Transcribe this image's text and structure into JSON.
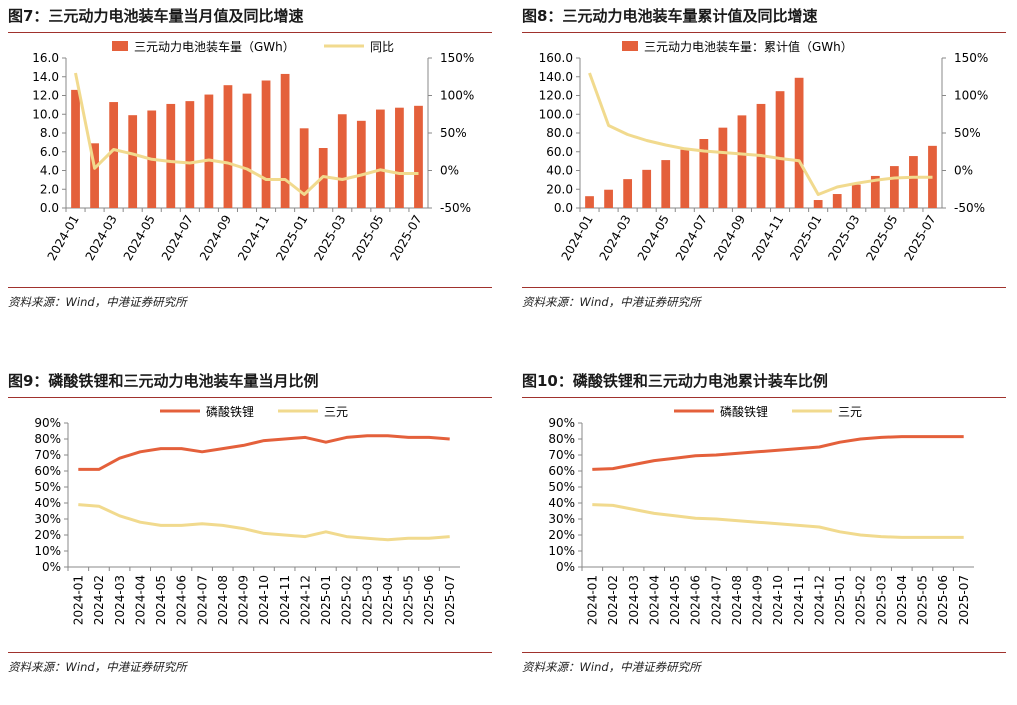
{
  "source_label": "资料来源：Wind，中港证券研究所",
  "colors": {
    "bar": "#e4603b",
    "line_yoy": "#f1da8e",
    "lfp": "#e4603b",
    "ternary": "#f1da8e",
    "rule": "#a0322d"
  },
  "chart_data": [
    {
      "id": "fig7",
      "type": "bar+line",
      "title": "图7：三元动力电池装车量当月值及同比增速",
      "categories": [
        "2024-01",
        "2024-02",
        "2024-03",
        "2024-04",
        "2024-05",
        "2024-06",
        "2024-07",
        "2024-08",
        "2024-09",
        "2024-10",
        "2024-11",
        "2024-12",
        "2025-01",
        "2025-02",
        "2025-03",
        "2025-04",
        "2025-05",
        "2025-06",
        "2025-07"
      ],
      "xtick_labels": [
        "2024-01",
        "2024-03",
        "2024-05",
        "2024-07",
        "2024-09",
        "2024-11",
        "2025-01",
        "2025-03",
        "2025-05",
        "2025-07"
      ],
      "series": [
        {
          "name": "三元动力电池装车量（GWh）",
          "type": "bar",
          "axis": "left",
          "values": [
            12.6,
            6.9,
            11.3,
            9.9,
            10.4,
            11.1,
            11.4,
            12.1,
            13.1,
            12.2,
            13.6,
            14.3,
            8.5,
            6.4,
            10.0,
            9.3,
            10.5,
            10.7,
            10.9
          ]
        },
        {
          "name": "同比",
          "type": "line",
          "axis": "right",
          "values": [
            130,
            3,
            28,
            22,
            15,
            12,
            10,
            14,
            10,
            2,
            -12,
            -12,
            -32,
            -8,
            -12,
            -6,
            1,
            -4,
            -4
          ]
        }
      ],
      "left_axis": {
        "min": 0,
        "max": 16,
        "ticks": [
          "0.0",
          "2.0",
          "4.0",
          "6.0",
          "8.0",
          "10.0",
          "12.0",
          "14.0",
          "16.0"
        ]
      },
      "right_axis": {
        "min": -50,
        "max": 150,
        "ticks": [
          "-50%",
          "0%",
          "50%",
          "100%",
          "150%"
        ]
      }
    },
    {
      "id": "fig8",
      "type": "bar+line",
      "title": "图8：三元动力电池装车量累计值及同比增速",
      "categories": [
        "2024-01",
        "2024-02",
        "2024-03",
        "2024-04",
        "2024-05",
        "2024-06",
        "2024-07",
        "2024-08",
        "2024-09",
        "2024-10",
        "2024-11",
        "2024-12",
        "2025-01",
        "2025-02",
        "2025-03",
        "2025-04",
        "2025-05",
        "2025-06",
        "2025-07"
      ],
      "xtick_labels": [
        "2024-01",
        "2024-03",
        "2024-05",
        "2024-07",
        "2024-09",
        "2024-11",
        "2025-01",
        "2025-03",
        "2025-05",
        "2025-07"
      ],
      "series": [
        {
          "name": "三元动力电池装车量：累计值（GWh）",
          "type": "bar",
          "axis": "left",
          "values": [
            12.6,
            19.5,
            30.8,
            40.7,
            51.1,
            62.2,
            73.6,
            85.7,
            98.8,
            111.0,
            124.6,
            138.9,
            8.5,
            14.9,
            24.9,
            34.2,
            44.7,
            55.4,
            66.3
          ]
        },
        {
          "name": "同比",
          "type": "line",
          "axis": "right",
          "values": [
            130,
            60,
            48,
            40,
            34,
            29,
            26,
            24,
            22,
            20,
            16,
            13,
            -32,
            -22,
            -17,
            -13,
            -10,
            -9,
            -9
          ]
        }
      ],
      "left_axis": {
        "min": 0,
        "max": 160,
        "ticks": [
          "0.0",
          "20.0",
          "40.0",
          "60.0",
          "80.0",
          "100.0",
          "120.0",
          "140.0",
          "160.0"
        ]
      },
      "right_axis": {
        "min": -50,
        "max": 150,
        "ticks": [
          "-50%",
          "0%",
          "50%",
          "100%",
          "150%"
        ]
      }
    },
    {
      "id": "fig9",
      "type": "line",
      "title": "图9：磷酸铁锂和三元动力电池装车量当月比例",
      "categories": [
        "2024-01",
        "2024-02",
        "2024-03",
        "2024-04",
        "2024-05",
        "2024-06",
        "2024-07",
        "2024-08",
        "2024-09",
        "2024-10",
        "2024-11",
        "2024-12",
        "2025-01",
        "2025-02",
        "2025-03",
        "2025-04",
        "2025-05",
        "2025-06",
        "2025-07"
      ],
      "series": [
        {
          "name": "磷酸铁锂",
          "values": [
            61,
            61,
            68,
            72,
            74,
            74,
            72,
            74,
            76,
            79,
            80,
            81,
            78,
            81,
            82,
            82,
            81,
            81,
            80
          ]
        },
        {
          "name": "三元",
          "values": [
            39,
            38,
            32,
            28,
            26,
            26,
            27,
            26,
            24,
            21,
            20,
            19,
            22,
            19,
            18,
            17,
            18,
            18,
            19
          ]
        }
      ],
      "y_axis": {
        "min": 0,
        "max": 90,
        "ticks": [
          "0%",
          "10%",
          "20%",
          "30%",
          "40%",
          "50%",
          "60%",
          "70%",
          "80%",
          "90%"
        ]
      }
    },
    {
      "id": "fig10",
      "type": "line",
      "title": "图10：磷酸铁锂和三元动力电池累计装车比例",
      "categories": [
        "2024-01",
        "2024-02",
        "2024-03",
        "2024-04",
        "2024-05",
        "2024-06",
        "2024-07",
        "2024-08",
        "2024-09",
        "2024-10",
        "2024-11",
        "2024-12",
        "2025-01",
        "2025-02",
        "2025-03",
        "2025-04",
        "2025-05",
        "2025-06",
        "2025-07"
      ],
      "series": [
        {
          "name": "磷酸铁锂",
          "values": [
            61,
            61.5,
            64,
            66.5,
            68,
            69.5,
            70,
            71,
            72,
            73,
            74,
            75,
            78,
            80,
            81,
            81.5,
            81.5,
            81.5,
            81.5
          ]
        },
        {
          "name": "三元",
          "values": [
            39,
            38.5,
            36,
            33.5,
            32,
            30.5,
            30,
            29,
            28,
            27,
            26,
            25,
            22,
            20,
            19,
            18.5,
            18.5,
            18.5,
            18.5
          ]
        }
      ],
      "y_axis": {
        "min": 0,
        "max": 90,
        "ticks": [
          "0%",
          "10%",
          "20%",
          "30%",
          "40%",
          "50%",
          "60%",
          "70%",
          "80%",
          "90%"
        ]
      }
    }
  ]
}
